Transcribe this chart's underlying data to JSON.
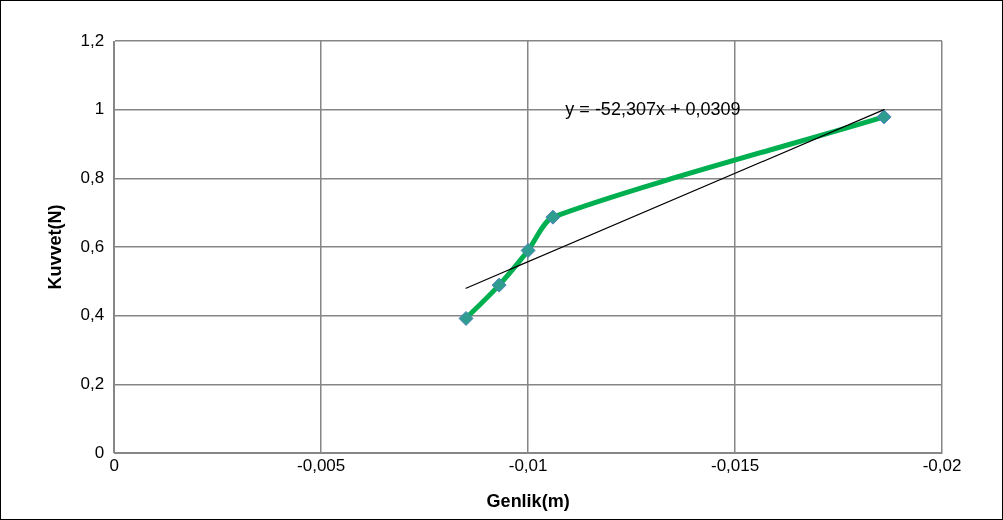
{
  "chart_data": {
    "type": "line",
    "xlabel": "Genlik(m)",
    "ylabel": "Kuvvet(N)",
    "xlim": [
      0,
      -0.02
    ],
    "xticks": [
      {
        "value": 0,
        "label": "0"
      },
      {
        "value": -0.005,
        "label": "-0,005"
      },
      {
        "value": -0.01,
        "label": "-0,01"
      },
      {
        "value": -0.015,
        "label": "-0,015"
      },
      {
        "value": -0.02,
        "label": "-0,02"
      }
    ],
    "ylim": [
      0,
      1.2
    ],
    "yticks": [
      {
        "value": 0,
        "label": "0"
      },
      {
        "value": 0.2,
        "label": "0,2"
      },
      {
        "value": 0.4,
        "label": "0,4"
      },
      {
        "value": 0.6,
        "label": "0,6"
      },
      {
        "value": 0.8,
        "label": "0,8"
      },
      {
        "value": 1,
        "label": "1"
      },
      {
        "value": 1.2,
        "label": "1,2"
      }
    ],
    "grid": true,
    "legend": false,
    "marker": "diamond",
    "line_style": "solid",
    "series": [
      {
        "color": "#00b050",
        "x": [
          -0.0085,
          -0.0093,
          -0.01,
          -0.0106,
          -0.0186
        ],
        "values": [
          0.392,
          0.489,
          0.59,
          0.687,
          0.979
        ]
      },
      {
        "type": "line",
        "marker": "none",
        "color": "#000000",
        "x": [
          -0.0085,
          -0.0186
        ],
        "values": [
          0.48,
          1.0
        ]
      }
    ],
    "annotations": [
      "y = -52,307x + 0,0309"
    ]
  }
}
